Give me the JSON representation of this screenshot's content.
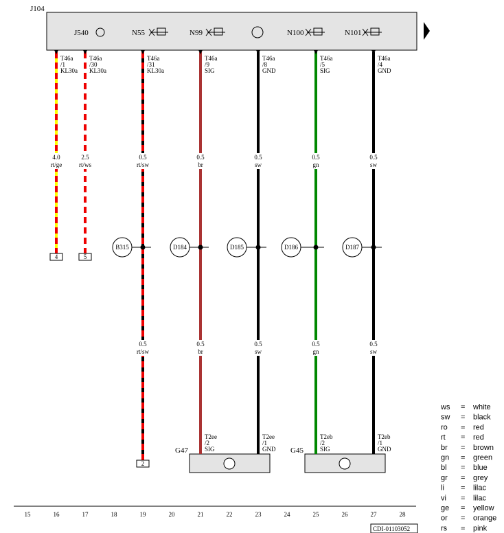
{
  "module": {
    "label": "J104",
    "components": [
      "J540",
      "N55",
      "N99",
      "N100",
      "N101"
    ]
  },
  "wires": [
    {
      "connector": "T46a",
      "pin": "/1",
      "signal": "KL30a",
      "gauge": "4.0",
      "color": "rt/ge",
      "terminal": "4"
    },
    {
      "connector": "T46a",
      "pin": "/30",
      "signal": "KL30a",
      "gauge": "2.5",
      "color": "rt/ws",
      "terminal": "5"
    },
    {
      "connector": "T46a",
      "pin": "/31",
      "signal": "KL30a",
      "gauge": "0.5",
      "color": "rt/sw",
      "splice": "B315",
      "lower_gauge": "0.5",
      "lower_color": "rt/sw",
      "terminal": "2"
    },
    {
      "connector": "T46a",
      "pin": "/9",
      "signal": "SIG",
      "gauge": "0.5",
      "color": "br",
      "splice": "D184",
      "lower_gauge": "0.5",
      "lower_color": "br",
      "end_connector": "T2ee",
      "end_pin": "/2",
      "end_signal": "SIG"
    },
    {
      "connector": "T46a",
      "pin": "/8",
      "signal": "GND",
      "gauge": "0.5",
      "color": "sw",
      "splice": "D185",
      "lower_gauge": "0.5",
      "lower_color": "sw",
      "end_connector": "T2ee",
      "end_pin": "/1",
      "end_signal": "GND"
    },
    {
      "connector": "T46a",
      "pin": "/5",
      "signal": "SIG",
      "gauge": "0.5",
      "color": "gn",
      "splice": "D186",
      "lower_gauge": "0.5",
      "lower_color": "gn",
      "end_connector": "T2eb",
      "end_pin": "/2",
      "end_signal": "SIG"
    },
    {
      "connector": "T46a",
      "pin": "/4",
      "signal": "GND",
      "gauge": "0.5",
      "color": "sw",
      "splice": "D187",
      "lower_gauge": "0.5",
      "lower_color": "sw",
      "end_connector": "T2eb",
      "end_pin": "/1",
      "end_signal": "GND"
    }
  ],
  "sensors": [
    {
      "label": "G47"
    },
    {
      "label": "G45"
    }
  ],
  "columns": [
    15,
    16,
    17,
    18,
    19,
    20,
    21,
    22,
    23,
    24,
    25,
    26,
    27,
    28
  ],
  "legend": [
    {
      "code": "ws",
      "eq": "=",
      "name": "white"
    },
    {
      "code": "sw",
      "eq": "=",
      "name": "black"
    },
    {
      "code": "ro",
      "eq": "=",
      "name": "red"
    },
    {
      "code": "rt",
      "eq": "=",
      "name": "red"
    },
    {
      "code": "br",
      "eq": "=",
      "name": "brown"
    },
    {
      "code": "gn",
      "eq": "=",
      "name": "green"
    },
    {
      "code": "bl",
      "eq": "=",
      "name": "blue"
    },
    {
      "code": "gr",
      "eq": "=",
      "name": "grey"
    },
    {
      "code": "li",
      "eq": "=",
      "name": "lilac"
    },
    {
      "code": "vi",
      "eq": "=",
      "name": "lilac"
    },
    {
      "code": "ge",
      "eq": "=",
      "name": "yellow"
    },
    {
      "code": "or",
      "eq": "=",
      "name": "orange"
    },
    {
      "code": "rs",
      "eq": "=",
      "name": "pink"
    }
  ],
  "footer": "CDI-01103052"
}
